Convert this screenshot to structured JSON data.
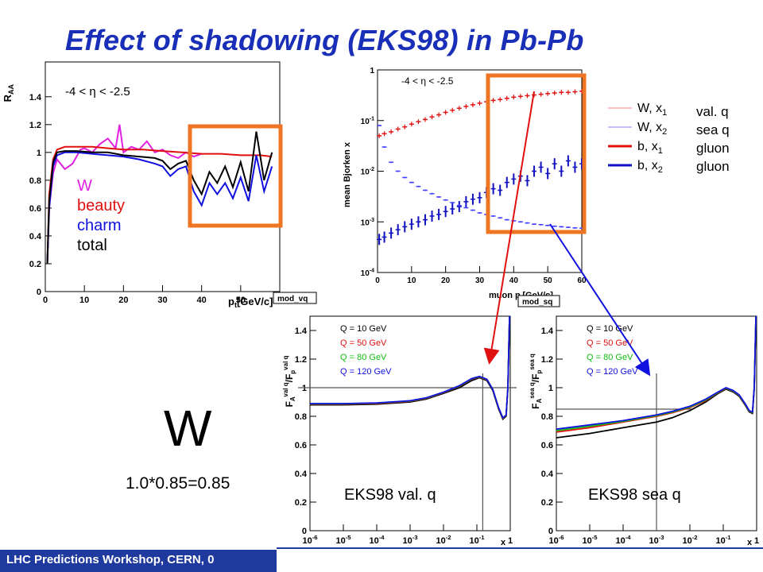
{
  "slide": {
    "title": "Effect of shadowing (EKS98) in Pb-Pb",
    "footer": "LHC Predictions Workshop, CERN, 0",
    "big_label": "W",
    "product": "1.0*0.85=0.85",
    "colors": {
      "title": "#1a2fb8",
      "footer_bg": "#1f3a9e",
      "highlight": "#ee7622",
      "arrow_red": "#e01010",
      "arrow_blue": "#1010e0"
    }
  },
  "chart_data": [
    {
      "type": "line",
      "ylabel": "R",
      "ylabel_sub": "AA",
      "xlabel": "p",
      "xlabel_sub": "t",
      "xlabel_unit": "[GeV/c]",
      "annotation": "-4 < η < -2.5",
      "eta": "η",
      "xlim": [
        0,
        60
      ],
      "ylim": [
        0,
        1.65
      ],
      "xticks": [
        "0",
        "10",
        "20",
        "30",
        "40",
        "50"
      ],
      "yticks": [
        "0",
        "0.2",
        "0.4",
        "0.6",
        "0.8",
        "1",
        "1.2",
        "1.4"
      ],
      "legend": [
        "W",
        "beauty",
        "charm",
        "total"
      ],
      "series": [
        {
          "name": "W",
          "color": "#e020e0",
          "x": [
            0.5,
            1,
            2,
            3,
            5,
            7,
            9,
            10,
            12,
            14,
            16,
            18,
            19,
            20,
            22,
            24,
            26,
            28,
            30,
            32,
            34,
            36,
            38,
            40
          ],
          "y": [
            0.2,
            0.6,
            0.85,
            0.95,
            0.88,
            0.92,
            1.02,
            1.03,
            1.0,
            1.06,
            1.1,
            1.03,
            1.2,
            1.0,
            1.04,
            1.02,
            1.08,
            1.0,
            1.02,
            0.98,
            0.96,
            1.0,
            0.97,
            0.99
          ]
        },
        {
          "name": "beauty",
          "color": "#e01010",
          "x": [
            0.5,
            1,
            2,
            3,
            5,
            8,
            12,
            16,
            20,
            25,
            30,
            35,
            40,
            45,
            50,
            55,
            58
          ],
          "y": [
            0.2,
            0.7,
            0.95,
            1.02,
            1.04,
            1.04,
            1.04,
            1.03,
            1.02,
            1.02,
            1.01,
            1.0,
            0.99,
            0.99,
            0.98,
            0.98,
            0.97
          ]
        },
        {
          "name": "charm",
          "color": "#1010e0",
          "x": [
            0.5,
            1,
            2,
            3,
            5,
            8,
            12,
            16,
            20,
            24,
            28,
            30,
            32,
            34,
            36,
            38,
            40,
            42,
            44,
            46,
            48,
            50,
            52,
            54,
            56,
            58
          ],
          "y": [
            0.2,
            0.6,
            0.9,
            0.98,
            1.0,
            1.0,
            0.99,
            0.98,
            0.97,
            0.95,
            0.92,
            0.9,
            0.83,
            0.88,
            0.9,
            0.72,
            0.62,
            0.78,
            0.7,
            0.78,
            0.67,
            0.82,
            0.65,
            0.98,
            0.72,
            0.9
          ]
        },
        {
          "name": "total",
          "color": "#000000",
          "x": [
            0.5,
            1,
            2,
            3,
            5,
            8,
            12,
            16,
            20,
            24,
            28,
            30,
            32,
            34,
            36,
            38,
            40,
            42,
            44,
            46,
            48,
            50,
            52,
            54,
            56,
            58
          ],
          "y": [
            0.2,
            0.65,
            0.93,
            1.0,
            1.01,
            1.01,
            1.0,
            1.0,
            0.98,
            0.97,
            0.96,
            0.94,
            0.88,
            0.92,
            0.94,
            0.8,
            0.7,
            0.86,
            0.78,
            0.9,
            0.75,
            0.93,
            0.72,
            1.15,
            0.8,
            1.0
          ]
        }
      ],
      "tag": "mod_vq"
    },
    {
      "type": "scatter",
      "ylabel": "mean Bjorken x",
      "xlabel": "muon p",
      "xlabel_sub": "t",
      "xlabel_unit": "[GeV/c]",
      "annotation": "-4 < η < -2.5",
      "eta": "η",
      "log_y": true,
      "xlim": [
        0,
        60
      ],
      "ylim": [
        0.0001,
        1
      ],
      "xticks": [
        "0",
        "10",
        "20",
        "30",
        "40",
        "50",
        "60"
      ],
      "yticks": [
        "10^{-4}",
        "10^{-3}",
        "10^{-2}",
        "10^{-1}",
        "1"
      ],
      "legend": [
        {
          "label": "W, x",
          "sub": "1",
          "color": "#ff8080",
          "width": 1
        },
        {
          "label": "W, x",
          "sub": "2",
          "color": "#8080ff",
          "width": 1
        },
        {
          "label": "b, x",
          "sub": "1",
          "color": "#e01010",
          "width": 3
        },
        {
          "label": "b, x",
          "sub": "2",
          "color": "#1010c0",
          "width": 3
        }
      ],
      "legend_right": [
        "val. q",
        "sea q",
        "gluon",
        "gluon"
      ],
      "series": [
        {
          "name": "b, x1",
          "color": "#e01010",
          "x": [
            0.5,
            2,
            4,
            6,
            8,
            10,
            12,
            14,
            16,
            18,
            20,
            22,
            24,
            26,
            28,
            30,
            32,
            34,
            36,
            38,
            40,
            42,
            44,
            46,
            48,
            50,
            52,
            54,
            56,
            58,
            60
          ],
          "y": [
            0.05,
            0.055,
            0.06,
            0.068,
            0.075,
            0.085,
            0.095,
            0.105,
            0.118,
            0.13,
            0.145,
            0.16,
            0.175,
            0.19,
            0.205,
            0.22,
            0.235,
            0.25,
            0.26,
            0.275,
            0.29,
            0.3,
            0.31,
            0.32,
            0.33,
            0.34,
            0.35,
            0.36,
            0.36,
            0.37,
            0.38
          ]
        },
        {
          "name": "b, x2",
          "color": "#1010c0",
          "x": [
            0.5,
            2,
            4,
            6,
            8,
            10,
            12,
            14,
            16,
            18,
            20,
            22,
            24,
            26,
            28,
            30,
            32,
            34,
            36,
            38,
            40,
            42,
            44,
            46,
            48,
            50,
            52,
            54,
            56,
            58,
            60
          ],
          "y": [
            0.00045,
            0.0005,
            0.0006,
            0.0007,
            0.0008,
            0.0009,
            0.001,
            0.0011,
            0.0013,
            0.0014,
            0.0016,
            0.0018,
            0.002,
            0.0025,
            0.0028,
            0.003,
            0.0038,
            0.0045,
            0.0042,
            0.006,
            0.007,
            0.008,
            0.0065,
            0.01,
            0.012,
            0.009,
            0.014,
            0.01,
            0.016,
            0.012,
            0.014
          ]
        },
        {
          "name": "W, x2",
          "color": "#4040ff",
          "x": [
            0.5,
            2,
            4,
            6,
            8,
            10,
            12,
            14,
            16,
            18,
            20,
            22,
            24,
            26,
            28,
            30,
            32,
            34,
            36,
            38,
            40,
            42,
            44,
            46,
            48,
            50,
            52,
            54,
            56,
            58,
            60
          ],
          "y": [
            0.08,
            0.03,
            0.015,
            0.01,
            0.0075,
            0.006,
            0.005,
            0.0042,
            0.0036,
            0.0031,
            0.0027,
            0.0024,
            0.0021,
            0.0019,
            0.0017,
            0.0015,
            0.0014,
            0.0013,
            0.0012,
            0.0011,
            0.00105,
            0.001,
            0.00095,
            0.0009,
            0.00088,
            0.00085,
            0.00082,
            0.0008,
            0.00078,
            0.00076,
            0.00075
          ]
        }
      ],
      "tag": "mod_sq"
    },
    {
      "type": "line",
      "ylabel": "F",
      "ylabel_sup": "val q",
      "ylabel_sub": "A",
      "ylabel_den": "/F",
      "ylabel_den_sup": "val q",
      "ylabel_den_sub": "p",
      "xlabel": "x",
      "log_x": true,
      "xlim": [
        1e-06,
        1
      ],
      "ylim": [
        0,
        1.5
      ],
      "xticks": [
        "10^{-6}",
        "10^{-5}",
        "10^{-4}",
        "10^{-3}",
        "10^{-2}",
        "10^{-1}",
        "1"
      ],
      "yticks": [
        "0",
        "0.2",
        "0.4",
        "0.6",
        "0.8",
        "1",
        "1.2",
        "1.4"
      ],
      "legend": [
        "Q = 10 GeV",
        "Q = 50 GeV",
        "Q = 80 GeV",
        "Q = 120 GeV"
      ],
      "label": "EKS98 val. q",
      "series": [
        {
          "name": "Q = 10 GeV",
          "color": "#000000",
          "x": [
            1e-06,
            1e-05,
            0.0001,
            0.001,
            0.003,
            0.01,
            0.03,
            0.07,
            0.12,
            0.2,
            0.3,
            0.45,
            0.6,
            0.75,
            0.85,
            0.95
          ],
          "y": [
            0.88,
            0.88,
            0.885,
            0.9,
            0.92,
            0.96,
            1.0,
            1.05,
            1.07,
            1.05,
            0.98,
            0.85,
            0.78,
            0.8,
            1.0,
            1.5
          ]
        },
        {
          "name": "Q = 50 GeV",
          "color": "#e01010",
          "x": [
            1e-06,
            1e-05,
            0.0001,
            0.001,
            0.003,
            0.01,
            0.03,
            0.07,
            0.12,
            0.2,
            0.3,
            0.45,
            0.6,
            0.75,
            0.85,
            0.95
          ],
          "y": [
            0.885,
            0.885,
            0.89,
            0.905,
            0.925,
            0.965,
            1.01,
            1.06,
            1.075,
            1.055,
            0.985,
            0.855,
            0.785,
            0.805,
            1.0,
            1.5
          ]
        },
        {
          "name": "Q = 80 GeV",
          "color": "#10c010",
          "x": [
            1e-06,
            1e-05,
            0.0001,
            0.001,
            0.003,
            0.01,
            0.03,
            0.07,
            0.12,
            0.2,
            0.3,
            0.45,
            0.6,
            0.75,
            0.85,
            0.95
          ],
          "y": [
            0.887,
            0.887,
            0.892,
            0.907,
            0.927,
            0.967,
            1.012,
            1.062,
            1.077,
            1.057,
            0.987,
            0.857,
            0.787,
            0.807,
            1.0,
            1.5
          ]
        },
        {
          "name": "Q = 120 GeV",
          "color": "#1010e0",
          "x": [
            1e-06,
            1e-05,
            0.0001,
            0.001,
            0.003,
            0.01,
            0.03,
            0.07,
            0.12,
            0.2,
            0.3,
            0.45,
            0.6,
            0.75,
            0.85,
            0.95
          ],
          "y": [
            0.889,
            0.889,
            0.894,
            0.909,
            0.929,
            0.969,
            1.014,
            1.064,
            1.079,
            1.059,
            0.989,
            0.859,
            0.789,
            0.809,
            1.0,
            1.5
          ]
        }
      ]
    },
    {
      "type": "line",
      "ylabel": "F",
      "ylabel_sup": "sea q",
      "ylabel_sub": "A",
      "ylabel_den": "/F",
      "ylabel_den_sup": "sea q",
      "ylabel_den_sub": "p",
      "xlabel": "x",
      "log_x": true,
      "xlim": [
        1e-06,
        1
      ],
      "ylim": [
        0,
        1.5
      ],
      "xticks": [
        "10^{-6}",
        "10^{-5}",
        "10^{-4}",
        "10^{-3}",
        "10^{-2}",
        "10^{-1}",
        "1"
      ],
      "yticks": [
        "0",
        "0.2",
        "0.4",
        "0.6",
        "0.8",
        "1",
        "1.2",
        "1.4"
      ],
      "legend": [
        "Q = 10 GeV",
        "Q = 50 GeV",
        "Q = 80 GeV",
        "Q = 120 GeV"
      ],
      "label": "EKS98 sea q",
      "series": [
        {
          "name": "Q = 10 GeV",
          "color": "#000000",
          "x": [
            1e-06,
            1e-05,
            0.0001,
            0.001,
            0.003,
            0.01,
            0.03,
            0.07,
            0.12,
            0.2,
            0.3,
            0.45,
            0.6,
            0.75,
            0.85,
            0.95
          ],
          "y": [
            0.65,
            0.68,
            0.72,
            0.76,
            0.79,
            0.84,
            0.9,
            0.96,
            0.99,
            0.97,
            0.94,
            0.88,
            0.83,
            0.82,
            1.0,
            1.5
          ]
        },
        {
          "name": "Q = 50 GeV",
          "color": "#e01010",
          "x": [
            1e-06,
            1e-05,
            0.0001,
            0.001,
            0.003,
            0.01,
            0.03,
            0.07,
            0.12,
            0.2,
            0.3,
            0.45,
            0.6,
            0.75,
            0.85,
            0.95
          ],
          "y": [
            0.69,
            0.72,
            0.76,
            0.8,
            0.825,
            0.86,
            0.91,
            0.965,
            0.995,
            0.975,
            0.945,
            0.885,
            0.835,
            0.825,
            1.0,
            1.5
          ]
        },
        {
          "name": "Q = 80 GeV",
          "color": "#10c010",
          "x": [
            1e-06,
            1e-05,
            0.0001,
            0.001,
            0.003,
            0.01,
            0.03,
            0.07,
            0.12,
            0.2,
            0.3,
            0.45,
            0.6,
            0.75,
            0.85,
            0.95
          ],
          "y": [
            0.7,
            0.73,
            0.765,
            0.805,
            0.83,
            0.865,
            0.915,
            0.968,
            0.997,
            0.977,
            0.947,
            0.887,
            0.837,
            0.827,
            1.0,
            1.5
          ]
        },
        {
          "name": "Q = 120 GeV",
          "color": "#1010e0",
          "x": [
            1e-06,
            1e-05,
            0.0001,
            0.001,
            0.003,
            0.01,
            0.03,
            0.07,
            0.12,
            0.2,
            0.3,
            0.45,
            0.6,
            0.75,
            0.85,
            0.95
          ],
          "y": [
            0.71,
            0.74,
            0.77,
            0.81,
            0.835,
            0.87,
            0.92,
            0.97,
            1.0,
            0.98,
            0.95,
            0.89,
            0.84,
            0.83,
            1.0,
            1.5
          ]
        }
      ]
    }
  ]
}
